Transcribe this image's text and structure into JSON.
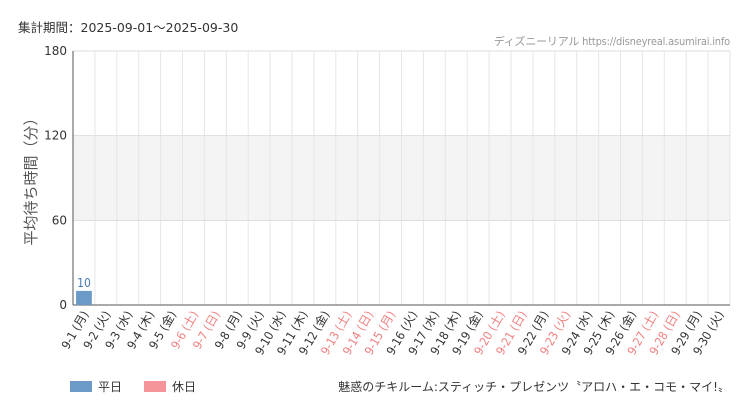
{
  "header": {
    "period": "集計期間：2025-09-01～2025-09-30",
    "credit": "ディズニーリアル https://disneyreal.asumirai.info"
  },
  "footer": {
    "attraction": "魅惑のチキルーム:スティッチ・プレゼンツ〝アロハ・エ・コモ・マイ!〟"
  },
  "legend": {
    "weekday_label": "平日",
    "holiday_label": "休日"
  },
  "colors": {
    "weekday": "#6b9ac8",
    "holiday": "#f5959a",
    "weekday_text": "#333333",
    "holiday_text": "#f08080",
    "band": "#f4f4f4",
    "value_label": "#4a7eb5"
  },
  "chart_data": {
    "type": "bar",
    "ylabel": "平均待ち時間（分）",
    "xlabel": "",
    "ylim": [
      0,
      180
    ],
    "yticks": [
      0,
      60,
      120,
      180
    ],
    "grid": true,
    "legend_position": "bottom-left",
    "categories": [
      "9-1 (月)",
      "9-2 (火)",
      "9-3 (水)",
      "9-4 (木)",
      "9-5 (金)",
      "9-6 (土)",
      "9-7 (日)",
      "9-8 (月)",
      "9-9 (火)",
      "9-10 (水)",
      "9-11 (木)",
      "9-12 (金)",
      "9-13 (土)",
      "9-14 (日)",
      "9-15 (月)",
      "9-16 (火)",
      "9-17 (水)",
      "9-18 (木)",
      "9-19 (金)",
      "9-20 (土)",
      "9-21 (日)",
      "9-22 (月)",
      "9-23 (火)",
      "9-24 (水)",
      "9-25 (木)",
      "9-26 (金)",
      "9-27 (土)",
      "9-28 (日)",
      "9-29 (月)",
      "9-30 (火)"
    ],
    "holidays": [
      false,
      false,
      false,
      false,
      false,
      true,
      true,
      false,
      false,
      false,
      false,
      false,
      true,
      true,
      true,
      false,
      false,
      false,
      false,
      true,
      true,
      false,
      true,
      false,
      false,
      false,
      true,
      true,
      false,
      false
    ],
    "values": [
      10,
      null,
      null,
      null,
      null,
      null,
      null,
      null,
      null,
      null,
      null,
      null,
      null,
      null,
      null,
      null,
      null,
      null,
      null,
      null,
      null,
      null,
      null,
      null,
      null,
      null,
      null,
      null,
      null,
      null
    ],
    "value_labels": [
      "10",
      "",
      "",
      "",
      "",
      "",
      "",
      "",
      "",
      "",
      "",
      "",
      "",
      "",
      "",
      "",
      "",
      "",
      "",
      "",
      "",
      "",
      "",
      "",
      "",
      "",
      "",
      "",
      "",
      ""
    ]
  }
}
